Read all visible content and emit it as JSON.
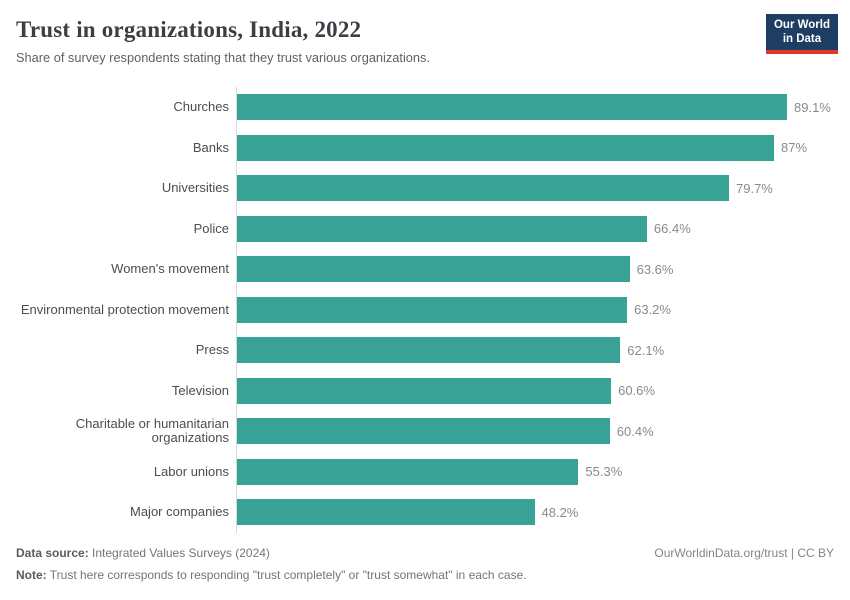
{
  "header": {
    "title": "Trust in organizations, India, 2022",
    "subtitle": "Share of survey respondents stating that they trust various organizations.",
    "logo": {
      "line1": "Our World",
      "line2": "in Data"
    }
  },
  "chart_data": {
    "type": "bar",
    "orientation": "horizontal",
    "title": "Trust in organizations, India, 2022",
    "xlabel": "",
    "ylabel": "",
    "xlim": [
      0,
      92
    ],
    "grid": false,
    "legend": false,
    "categories": [
      "Churches",
      "Banks",
      "Universities",
      "Police",
      "Women's movement",
      "Environmental protection movement",
      "Press",
      "Television",
      "Charitable or humanitarian organizations",
      "Labor unions",
      "Major companies"
    ],
    "values": [
      89.1,
      87,
      79.7,
      66.4,
      63.6,
      63.2,
      62.1,
      60.6,
      60.4,
      55.3,
      48.2
    ],
    "value_labels": [
      "89.1%",
      "87%",
      "79.7%",
      "66.4%",
      "63.6%",
      "63.2%",
      "62.1%",
      "60.6%",
      "60.4%",
      "55.3%",
      "48.2%"
    ]
  },
  "colors": {
    "bar": "#38a296",
    "axis_line": "#d9d9d9",
    "logo_bg": "#1d3d63",
    "logo_red": "#e0362c"
  },
  "footer": {
    "data_source_label": "Data source:",
    "data_source_value": " Integrated Values Surveys (2024)",
    "link": "OurWorldinData.org/trust | CC BY",
    "note_label": "Note:",
    "note_value": " Trust here corresponds to responding \"trust completely\" or \"trust somewhat\" in each case."
  }
}
